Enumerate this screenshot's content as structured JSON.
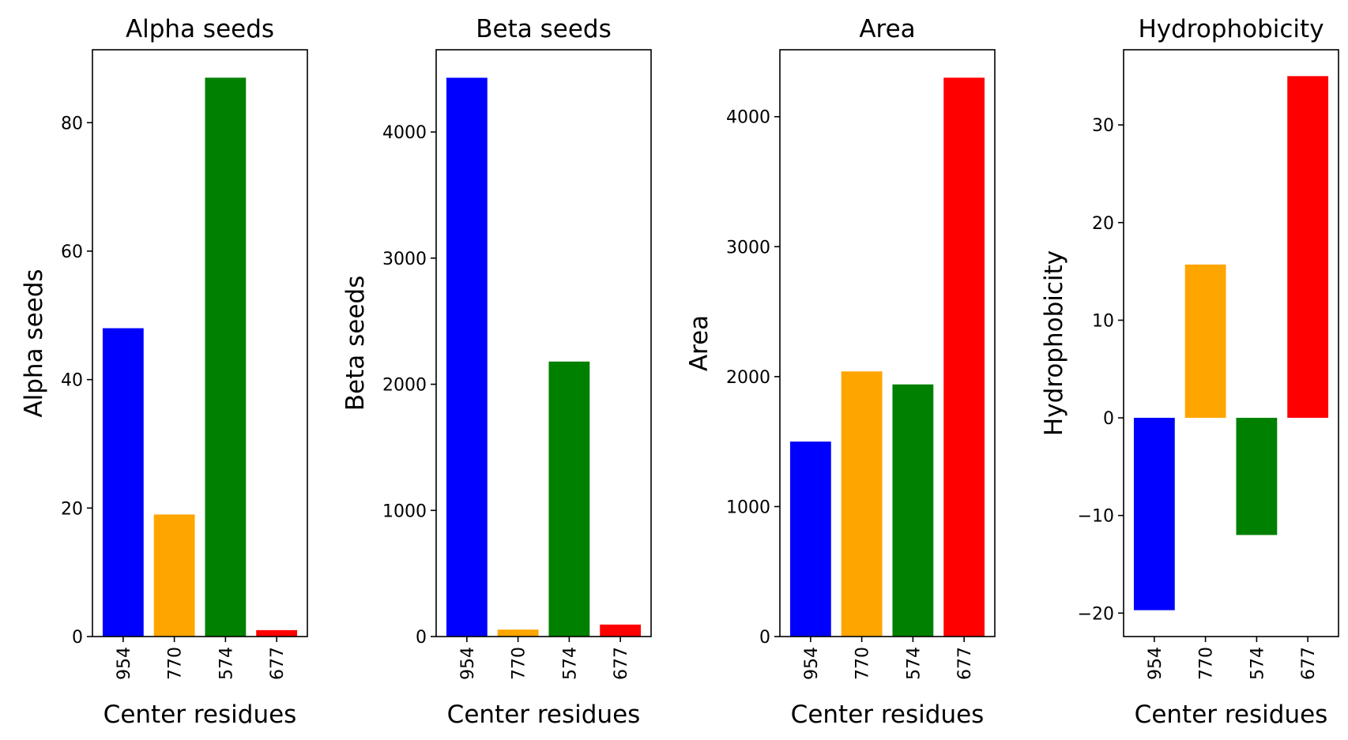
{
  "chart_data": [
    {
      "type": "bar",
      "title": "Alpha seeds",
      "xlabel": "Center residues",
      "ylabel": "Alpha seeds",
      "categories": [
        "954",
        "770",
        "574",
        "677"
      ],
      "values": [
        48,
        19,
        87,
        1
      ],
      "colors": [
        "#0000ff",
        "#ffa500",
        "#008000",
        "#ff0000"
      ],
      "ylim": [
        0,
        91.35
      ],
      "yticks": [
        0,
        20,
        40,
        60,
        80
      ],
      "ytick_labels": [
        "0",
        "20",
        "40",
        "60",
        "80"
      ]
    },
    {
      "type": "bar",
      "title": "Beta seeds",
      "xlabel": "Center residues",
      "ylabel": "Beta seeds",
      "categories": [
        "954",
        "770",
        "574",
        "677"
      ],
      "values": [
        4430,
        55,
        2180,
        95
      ],
      "colors": [
        "#0000ff",
        "#ffa500",
        "#008000",
        "#ff0000"
      ],
      "ylim": [
        0,
        4652
      ],
      "yticks": [
        0,
        1000,
        2000,
        3000,
        4000
      ],
      "ytick_labels": [
        "0",
        "1000",
        "2000",
        "3000",
        "4000"
      ]
    },
    {
      "type": "bar",
      "title": "Area",
      "xlabel": "Center residues",
      "ylabel": "Area",
      "categories": [
        "954",
        "770",
        "574",
        "677"
      ],
      "values": [
        1500,
        2040,
        1940,
        4300
      ],
      "colors": [
        "#0000ff",
        "#ffa500",
        "#008000",
        "#ff0000"
      ],
      "ylim": [
        0,
        4515
      ],
      "yticks": [
        0,
        1000,
        2000,
        3000,
        4000
      ],
      "ytick_labels": [
        "0",
        "1000",
        "2000",
        "3000",
        "4000"
      ]
    },
    {
      "type": "bar",
      "title": "Hydrophobicity",
      "xlabel": "Center residues",
      "ylabel": "Hydrophobicity",
      "categories": [
        "954",
        "770",
        "574",
        "677"
      ],
      "values": [
        -19.7,
        15.7,
        -12.0,
        35.0
      ],
      "colors": [
        "#0000ff",
        "#ffa500",
        "#008000",
        "#ff0000"
      ],
      "ylim": [
        -22.4,
        37.7
      ],
      "yticks": [
        -20,
        -10,
        0,
        10,
        20,
        30
      ],
      "ytick_labels": [
        "−20",
        "−10",
        "0",
        "10",
        "20",
        "30"
      ]
    }
  ]
}
